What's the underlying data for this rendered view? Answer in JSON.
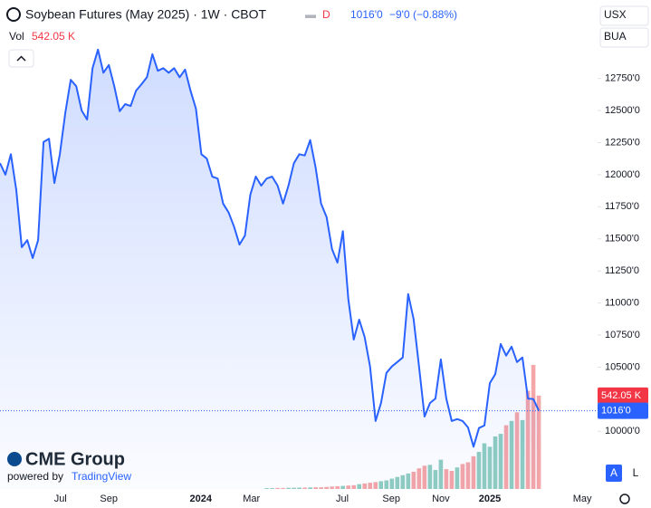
{
  "chart_data": {
    "type": "area",
    "title": "Soybean Futures (May 2025) · 1W · CBOT",
    "flag": "D",
    "change": "−9'0 (−0.88%)",
    "currency": "USX",
    "unit": "BUA",
    "line_color": "#2962ff",
    "x": [
      0,
      1,
      2,
      3,
      4,
      5,
      6,
      7,
      8,
      9,
      10,
      11,
      12,
      13,
      14,
      15,
      16,
      17,
      18,
      19,
      20,
      21,
      22,
      23,
      24,
      25,
      26,
      27,
      28,
      29,
      30,
      31,
      32,
      33,
      34,
      35,
      36,
      37,
      38,
      39,
      40,
      41,
      42,
      43,
      44,
      45,
      46,
      47,
      48,
      49,
      50,
      51,
      52,
      53,
      54,
      55,
      56,
      57,
      58,
      59,
      60,
      61,
      62,
      63,
      64,
      65,
      66,
      67,
      68,
      69,
      70,
      71,
      72,
      73,
      74,
      75,
      76,
      77,
      78,
      79,
      80,
      81,
      82,
      83,
      84,
      85,
      86,
      87,
      88,
      89,
      90,
      91,
      92,
      93,
      94,
      95,
      96,
      97,
      98,
      99
    ],
    "series": [
      {
        "name": "Soybean Futures",
        "color": "#2962ff",
        "values": [
          12090,
          12000,
          12160,
          11880,
          11435,
          11490,
          11350,
          11490,
          12255,
          12280,
          11935,
          12160,
          12480,
          12740,
          12690,
          12500,
          12430,
          12830,
          12975,
          12795,
          12855,
          12690,
          12495,
          12550,
          12535,
          12655,
          12705,
          12760,
          12940,
          12810,
          12830,
          12795,
          12830,
          12760,
          12820,
          12655,
          12515,
          12160,
          12125,
          11985,
          11970,
          11775,
          11705,
          11595,
          11455,
          11525,
          11845,
          11985,
          11915,
          11970,
          11985,
          11915,
          11775,
          11915,
          12090,
          12160,
          12150,
          12270,
          12055,
          11775,
          11670,
          11420,
          11315,
          11560,
          11030,
          10715,
          10870,
          10735,
          10505,
          10080,
          10220,
          10455,
          10505,
          10540,
          10575,
          11070,
          10875,
          10505,
          10115,
          10220,
          10255,
          10560,
          10255,
          10080,
          10095,
          10080,
          10030,
          9880,
          10025,
          10045,
          10375,
          10445,
          10680,
          10590,
          10660,
          10540,
          10575,
          10255,
          10250,
          10160
        ],
        "last_label": "1016'0"
      }
    ],
    "volume": {
      "label": "Vol",
      "up_color": "#8fcdc1",
      "down_color": "#f5a6a8",
      "ylim": [
        0,
        2680
      ],
      "last_label": "542.05 K",
      "values": [
        null,
        null,
        null,
        null,
        null,
        null,
        null,
        null,
        null,
        null,
        null,
        null,
        null,
        null,
        null,
        null,
        null,
        null,
        null,
        null,
        null,
        null,
        null,
        null,
        null,
        null,
        null,
        null,
        null,
        null,
        null,
        null,
        null,
        null,
        null,
        null,
        null,
        null,
        null,
        null,
        null,
        null,
        null,
        null,
        null,
        null,
        null,
        null,
        null,
        5,
        5,
        6,
        6,
        7,
        7,
        8,
        8,
        9,
        10,
        10,
        12,
        14,
        16,
        18,
        20,
        22,
        28,
        32,
        36,
        40,
        45,
        50,
        60,
        70,
        80,
        90,
        100,
        120,
        135,
        140,
        110,
        170,
        115,
        105,
        125,
        145,
        155,
        190,
        215,
        265,
        245,
        305,
        320,
        370,
        395,
        445,
        400,
        570,
        720,
        542.05
      ]
    },
    "xlim": [
      0,
      109.8
    ],
    "ylim": [
      9550,
      13150
    ],
    "xticks": [
      {
        "value": 11.1,
        "label": "Jul"
      },
      {
        "value": 20.0,
        "label": "Sep"
      },
      {
        "value": 36.9,
        "label": "2024"
      },
      {
        "value": 46.2,
        "label": "Mar"
      },
      {
        "value": 62.9,
        "label": "Jul"
      },
      {
        "value": 71.9,
        "label": "Sep"
      },
      {
        "value": 81.0,
        "label": "Nov"
      },
      {
        "value": 90.0,
        "label": "2025"
      },
      {
        "value": 107.0,
        "label": "May"
      }
    ],
    "yticks": [
      {
        "value": 10000,
        "label": "10000'0"
      },
      {
        "value": 10250,
        "label": "10250'0"
      },
      {
        "value": 10500,
        "label": "10500'0"
      },
      {
        "value": 10750,
        "label": "10750'0"
      },
      {
        "value": 11000,
        "label": "11000'0"
      },
      {
        "value": 11250,
        "label": "11250'0"
      },
      {
        "value": 11500,
        "label": "11500'0"
      },
      {
        "value": 11750,
        "label": "11750'0"
      },
      {
        "value": 12000,
        "label": "12000'0"
      },
      {
        "value": 12250,
        "label": "12250'0"
      },
      {
        "value": 12500,
        "label": "12500'0"
      },
      {
        "value": 12750,
        "label": "12750'0"
      }
    ],
    "brand": "CME Group",
    "powered_by": "powered by",
    "powered_brand": "TradingView",
    "buttons": [
      "A",
      "L"
    ]
  }
}
